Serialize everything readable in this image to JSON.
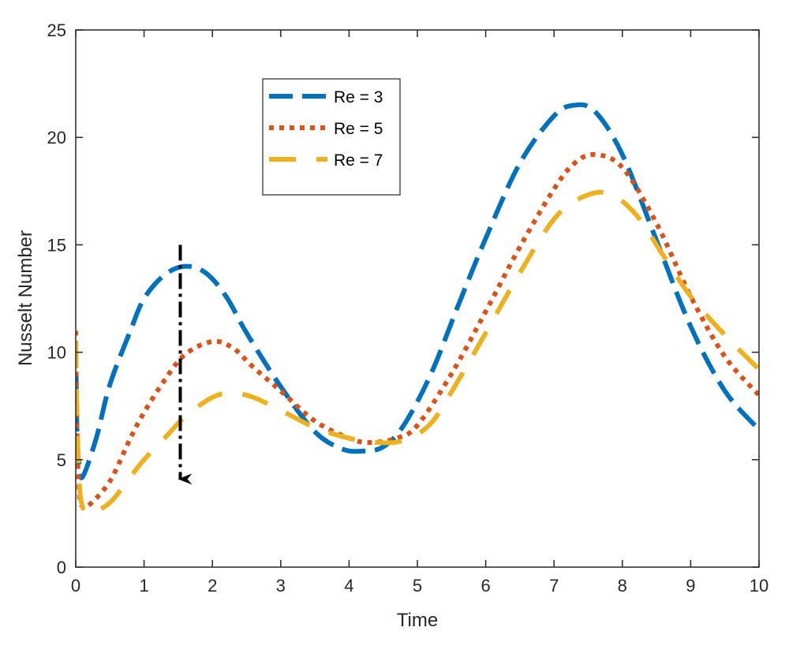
{
  "chart_data": {
    "type": "line",
    "title": "",
    "xlabel": "Time",
    "ylabel": "Nusselt Number",
    "xlim": [
      0,
      10
    ],
    "ylim": [
      0,
      25
    ],
    "xticks": [
      0,
      1,
      2,
      3,
      4,
      5,
      6,
      7,
      8,
      9,
      10
    ],
    "yticks": [
      0,
      5,
      10,
      15,
      20,
      25
    ],
    "grid": false,
    "legend_position": "top-center",
    "series": [
      {
        "name": "Re = 3",
        "color": "#0072BD",
        "dash": "long-dash",
        "x": [
          0.0,
          0.02,
          0.05,
          0.1,
          0.3,
          0.5,
          0.8,
          1.0,
          1.3,
          1.6,
          1.9,
          2.2,
          2.5,
          3.0,
          3.5,
          3.9,
          4.2,
          4.5,
          4.8,
          5.2,
          5.6,
          6.0,
          6.5,
          7.0,
          7.3,
          7.6,
          8.0,
          8.5,
          9.0,
          9.5,
          10.0
        ],
        "y": [
          10.5,
          6.0,
          4.8,
          4.2,
          6.0,
          8.5,
          11.0,
          12.5,
          13.6,
          14.0,
          13.7,
          12.6,
          10.9,
          8.4,
          6.3,
          5.5,
          5.4,
          5.6,
          6.6,
          9.0,
          12.2,
          15.3,
          18.8,
          21.0,
          21.5,
          21.2,
          19.2,
          15.2,
          11.2,
          8.2,
          6.4
        ]
      },
      {
        "name": "Re = 5",
        "color": "#D95319",
        "dash": "dotted",
        "x": [
          0.0,
          0.02,
          0.05,
          0.1,
          0.2,
          0.5,
          0.8,
          1.0,
          1.3,
          1.6,
          2.0,
          2.3,
          2.6,
          3.0,
          3.5,
          4.0,
          4.3,
          4.7,
          5.0,
          5.5,
          6.0,
          6.5,
          7.0,
          7.3,
          7.6,
          8.0,
          8.5,
          9.0,
          9.5,
          10.0
        ],
        "y": [
          11.0,
          6.0,
          3.5,
          2.8,
          2.9,
          4.0,
          6.0,
          7.2,
          8.7,
          9.9,
          10.5,
          10.2,
          9.3,
          8.2,
          6.8,
          6.0,
          5.8,
          6.0,
          6.6,
          9.0,
          11.9,
          14.9,
          17.6,
          18.8,
          19.2,
          18.6,
          16.0,
          12.6,
          9.8,
          8.0
        ]
      },
      {
        "name": "Re = 7",
        "color": "#EDB120",
        "dash": "sparse-dash",
        "x": [
          0.0,
          0.02,
          0.05,
          0.1,
          0.2,
          0.5,
          0.8,
          1.0,
          1.3,
          1.6,
          2.0,
          2.3,
          2.6,
          3.0,
          3.5,
          4.0,
          4.4,
          4.8,
          5.2,
          5.6,
          6.0,
          6.5,
          7.0,
          7.4,
          7.8,
          8.2,
          8.6,
          9.0,
          9.5,
          10.0
        ],
        "y": [
          10.5,
          7.0,
          4.0,
          2.8,
          2.5,
          3.0,
          4.2,
          5.0,
          6.0,
          7.0,
          7.9,
          8.1,
          7.9,
          7.3,
          6.5,
          6.0,
          5.8,
          5.9,
          6.7,
          8.7,
          10.9,
          13.7,
          16.2,
          17.2,
          17.4,
          16.4,
          14.5,
          12.6,
          10.8,
          9.2
        ]
      }
    ],
    "annotations": [
      {
        "type": "arrow",
        "style": "dash-dot",
        "color": "#000000",
        "x": 1.53,
        "y_start": 15.0,
        "y_end": 4.1
      }
    ]
  }
}
